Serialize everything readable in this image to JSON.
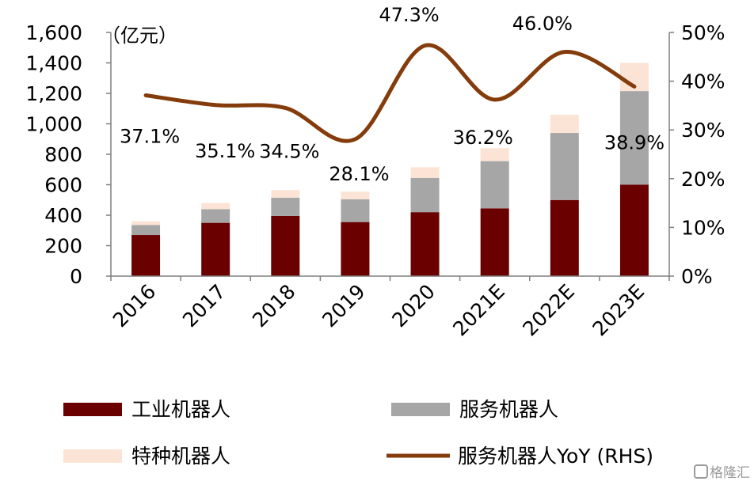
{
  "chart_data": {
    "type": "bar",
    "stacked": true,
    "categories": [
      "2016",
      "2017",
      "2018",
      "2019",
      "2020",
      "2021E",
      "2022E",
      "2023E"
    ],
    "series": [
      {
        "name": "工业机器人",
        "type": "bar",
        "color": "#6b0000",
        "values": [
          270,
          350,
          395,
          355,
          420,
          445,
          500,
          600
        ]
      },
      {
        "name": "服务机器人",
        "type": "bar",
        "color": "#a6a6a6",
        "values": [
          65,
          90,
          120,
          150,
          225,
          310,
          440,
          615
        ]
      },
      {
        "name": "特种机器人",
        "type": "bar",
        "color": "#fbe4d5",
        "values": [
          25,
          40,
          50,
          50,
          70,
          85,
          120,
          185
        ]
      },
      {
        "name": "服务机器人YoY (RHS)",
        "type": "line",
        "axis": "right",
        "color": "#843c0c",
        "values": [
          37.1,
          35.1,
          34.5,
          28.1,
          47.3,
          36.2,
          46.0,
          38.9
        ],
        "labels": [
          "37.1%",
          "35.1%",
          "34.5%",
          "28.1%",
          "47.3%",
          "36.2%",
          "46.0%",
          "38.9%"
        ]
      }
    ],
    "y_left": {
      "unit": "（亿元）",
      "min": 0,
      "max": 1600,
      "ticks": [
        "0",
        "200",
        "400",
        "600",
        "800",
        "1,000",
        "1,200",
        "1,400",
        "1,600"
      ]
    },
    "y_right": {
      "min": 0,
      "max": 50,
      "ticks": [
        "0%",
        "10%",
        "20%",
        "30%",
        "40%",
        "50%"
      ]
    },
    "grid": false,
    "legend_position": "bottom"
  },
  "watermark": "格隆汇"
}
